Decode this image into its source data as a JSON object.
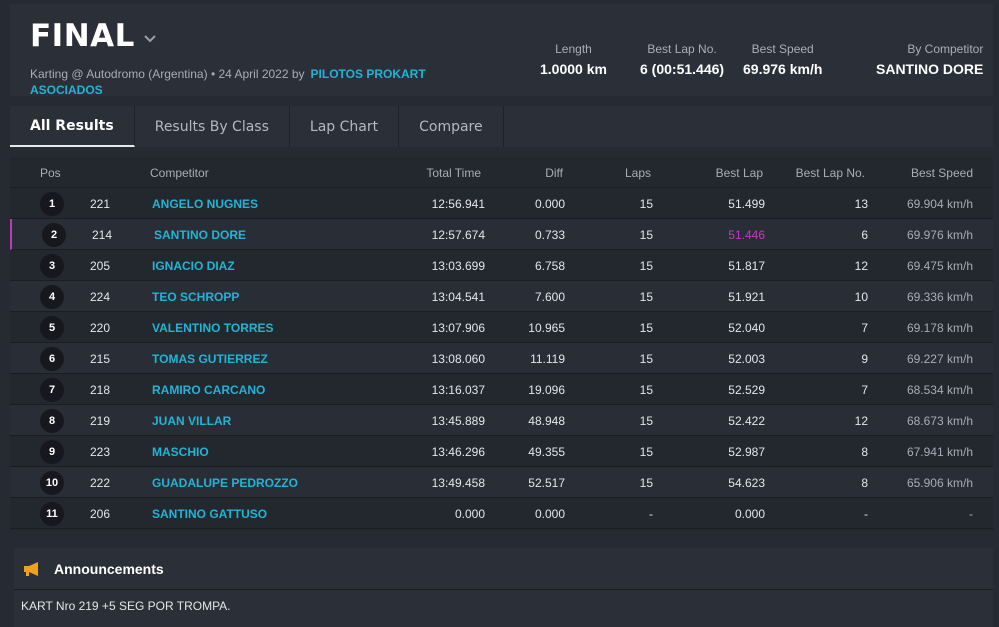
{
  "header": {
    "title": "FINAL",
    "subtitle": "Karting @ Autodromo (Argentina) • 24 April 2022 by",
    "organizer": "PILOTOS PROKART ASOCIADOS",
    "stats": [
      {
        "label": "Length",
        "value": "1.0000 km"
      },
      {
        "label": "Best Lap No.",
        "value": "6 (00:51.446)"
      },
      {
        "label": "Best Speed",
        "value": "69.976 km/h"
      },
      {
        "label": "By Competitor",
        "value": "SANTINO DORE"
      }
    ]
  },
  "tabs": [
    "All Results",
    "Results By Class",
    "Lap Chart",
    "Compare"
  ],
  "table": {
    "headers": {
      "pos": "Pos",
      "competitor": "Competitor",
      "total": "Total Time",
      "diff": "Diff",
      "laps": "Laps",
      "best": "Best Lap",
      "bestno": "Best Lap No.",
      "speed": "Best Speed"
    },
    "rows": [
      {
        "pos": "1",
        "num": "221",
        "name": "ANGELO NUGNES",
        "total": "12:56.941",
        "diff": "0.000",
        "laps": "15",
        "best": "51.499",
        "bestno": "13",
        "speed": "69.904 km/h"
      },
      {
        "pos": "2",
        "num": "214",
        "name": "SANTINO DORE",
        "total": "12:57.674",
        "diff": "0.733",
        "laps": "15",
        "best": "51.446",
        "bestno": "6",
        "speed": "69.976 km/h"
      },
      {
        "pos": "3",
        "num": "205",
        "name": "IGNACIO DIAZ",
        "total": "13:03.699",
        "diff": "6.758",
        "laps": "15",
        "best": "51.817",
        "bestno": "12",
        "speed": "69.475 km/h"
      },
      {
        "pos": "4",
        "num": "224",
        "name": "TEO SCHROPP",
        "total": "13:04.541",
        "diff": "7.600",
        "laps": "15",
        "best": "51.921",
        "bestno": "10",
        "speed": "69.336 km/h"
      },
      {
        "pos": "5",
        "num": "220",
        "name": "VALENTINO TORRES",
        "total": "13:07.906",
        "diff": "10.965",
        "laps": "15",
        "best": "52.040",
        "bestno": "7",
        "speed": "69.178 km/h"
      },
      {
        "pos": "6",
        "num": "215",
        "name": "TOMAS GUTIERREZ",
        "total": "13:08.060",
        "diff": "11.119",
        "laps": "15",
        "best": "52.003",
        "bestno": "9",
        "speed": "69.227 km/h"
      },
      {
        "pos": "7",
        "num": "218",
        "name": "RAMIRO CARCANO",
        "total": "13:16.037",
        "diff": "19.096",
        "laps": "15",
        "best": "52.529",
        "bestno": "7",
        "speed": "68.534 km/h"
      },
      {
        "pos": "8",
        "num": "219",
        "name": "JUAN VILLAR",
        "total": "13:45.889",
        "diff": "48.948",
        "laps": "15",
        "best": "52.422",
        "bestno": "12",
        "speed": "68.673 km/h"
      },
      {
        "pos": "9",
        "num": "223",
        "name": "MASCHIO",
        "total": "13:46.296",
        "diff": "49.355",
        "laps": "15",
        "best": "52.987",
        "bestno": "8",
        "speed": "67.941 km/h"
      },
      {
        "pos": "10",
        "num": "222",
        "name": "GUADALUPE PEDROZZO",
        "total": "13:49.458",
        "diff": "52.517",
        "laps": "15",
        "best": "54.623",
        "bestno": "8",
        "speed": "65.906 km/h"
      },
      {
        "pos": "11",
        "num": "206",
        "name": "SANTINO GATTUSO",
        "total": "0.000",
        "diff": "0.000",
        "laps": "-",
        "best": "0.000",
        "bestno": "-",
        "speed": "-"
      }
    ]
  },
  "announcements": {
    "title": "Announcements",
    "text": "KART Nro 219 +5 SEG POR TROMPA."
  },
  "colors": {
    "accent": "#22b4d6",
    "fastest_lap": "#c13bc4",
    "bg": "#262a32"
  }
}
